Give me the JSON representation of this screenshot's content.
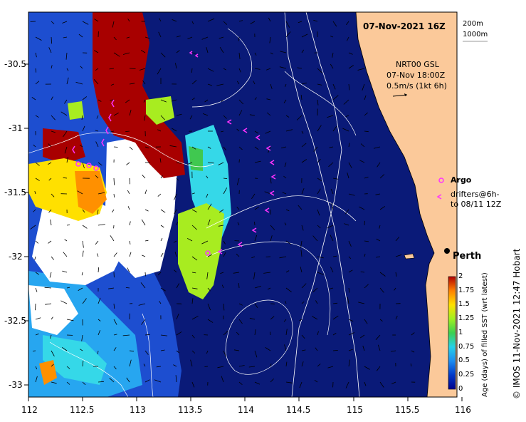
{
  "title": "07-Nov-2021 16Z",
  "depth_contours": [
    "200m",
    "1000m"
  ],
  "current_info": [
    "NRT00 GSL",
    "07-Nov 18:00Z",
    "0.5m/s (1kt 6h)"
  ],
  "legend": {
    "argo_label": "Argo",
    "drifters_line1": "drifters@6h-",
    "drifters_line2": "to 08/11 12Z"
  },
  "city": "Perth",
  "colorbar": {
    "label": "Age (days) of filled SST (wrt latest)",
    "ticks": [
      "2",
      "1.75",
      "1.5",
      "1.25",
      "1",
      "0.75",
      "0.5",
      "0.25",
      "0"
    ]
  },
  "x_ticks": [
    "112",
    "112.5",
    "113",
    "113.5",
    "114",
    "114.5",
    "115",
    "115.5",
    "116"
  ],
  "y_ticks": [
    "-30.5",
    "-31",
    "-31.5",
    "-32",
    "-32.5",
    "-33"
  ],
  "credit": "© IMOS 11-Nov-2021 12:47 Hobart",
  "colors": {
    "ocean_fresh": "#0a1a78",
    "land": "#fbc99a",
    "argo": "#ff33ff",
    "contour": "#ffffff"
  }
}
